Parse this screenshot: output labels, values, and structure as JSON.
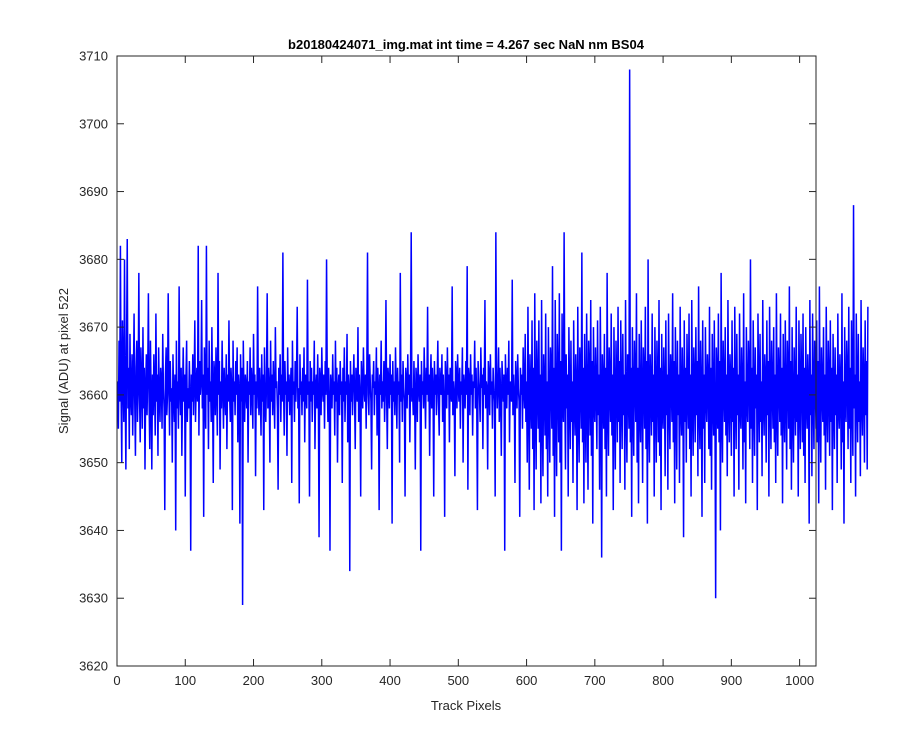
{
  "chart_data": {
    "type": "line",
    "title": "b20180424071_img.mat int time = 4.267 sec  NaN nm BS04",
    "xlabel": "Track Pixels",
    "ylabel": "Signal (ADU) at pixel 522",
    "xlim": [
      0,
      1024
    ],
    "ylim": [
      3620,
      3710
    ],
    "xticks": [
      0,
      100,
      200,
      300,
      400,
      500,
      600,
      700,
      800,
      900,
      1000
    ],
    "yticks": [
      3620,
      3630,
      3640,
      3650,
      3660,
      3670,
      3680,
      3690,
      3700,
      3710
    ],
    "grid": false,
    "series": [
      {
        "color": "#0000ff",
        "x_start": 1,
        "x_step": 1,
        "baseline": 3660,
        "typical_range": [
          3643,
          3677
        ],
        "min_point": [
          188,
          3629
        ],
        "max_point": [
          683,
          3708
        ],
        "values": [
          3662,
          3655,
          3668,
          3659,
          3682,
          3660,
          3650,
          3671,
          3663,
          3656,
          3680,
          3661,
          3649,
          3667,
          3683,
          3658,
          3664,
          3652,
          3669,
          3660,
          3657,
          3666,
          3654,
          3662,
          3672,
          3659,
          3651,
          3664,
          3668,
          3656,
          3661,
          3678,
          3660,
          3653,
          3667,
          3662,
          3655,
          3670,
          3658,
          3664,
          3649,
          3661,
          3666,
          3657,
          3663,
          3675,
          3659,
          3652,
          3668,
          3660,
          3649,
          3663,
          3657,
          3666,
          3661,
          3654,
          3672,
          3659,
          3663,
          3651,
          3667,
          3660,
          3656,
          3664,
          3662,
          3655,
          3669,
          3661,
          3658,
          3643,
          3663,
          3667,
          3657,
          3660,
          3675,
          3662,
          3654,
          3665,
          3659,
          3661,
          3650,
          3666,
          3660,
          3656,
          3663,
          3640,
          3668,
          3658,
          3662,
          3655,
          3676,
          3661,
          3657,
          3664,
          3651,
          3660,
          3667,
          3659,
          3663,
          3645,
          3662,
          3668,
          3656,
          3661,
          3658,
          3665,
          3660,
          3637,
          3663,
          3659,
          3666,
          3657,
          3662,
          3671,
          3656,
          3661,
          3664,
          3659,
          3682,
          3654,
          3665,
          3660,
          3662,
          3674,
          3658,
          3663,
          3642,
          3667,
          3661,
          3655,
          3682,
          3660,
          3664,
          3652,
          3668,
          3659,
          3662,
          3656,
          3670,
          3660,
          3647,
          3665,
          3663,
          3657,
          3667,
          3661,
          3654,
          3678,
          3660,
          3665,
          3649,
          3662,
          3658,
          3668,
          3661,
          3655,
          3664,
          3660,
          3657,
          3666,
          3652,
          3663,
          3659,
          3671,
          3660,
          3656,
          3664,
          3661,
          3643,
          3668,
          3659,
          3662,
          3657,
          3665,
          3660,
          3667,
          3653,
          3663,
          3661,
          3641,
          3666,
          3659,
          3664,
          3629,
          3668,
          3660,
          3656,
          3663,
          3661,
          3658,
          3665,
          3650,
          3662,
          3660,
          3667,
          3657,
          3664,
          3661,
          3655,
          3669,
          3660,
          3663,
          3648,
          3662,
          3658,
          3676,
          3661,
          3657,
          3664,
          3660,
          3654,
          3666,
          3659,
          3663,
          3643,
          3667,
          3660,
          3656,
          3662,
          3675,
          3658,
          3664,
          3661,
          3650,
          3668,
          3659,
          3663,
          3657,
          3665,
          3660,
          3655,
          3670,
          3661,
          3662,
          3658,
          3646,
          3664,
          3660,
          3666,
          3656,
          3663,
          3659,
          3681,
          3661,
          3654,
          3665,
          3660,
          3662,
          3651,
          3667,
          3659,
          3663,
          3657,
          3661,
          3664,
          3647,
          3668,
          3660,
          3662,
          3656,
          3665,
          3659,
          3663,
          3673,
          3658,
          3661,
          3644,
          3666,
          3660,
          3662,
          3657,
          3664,
          3659,
          3667,
          3653,
          3663,
          3661,
          3658,
          3677,
          3660,
          3662,
          3645,
          3665,
          3659,
          3664,
          3656,
          3662,
          3660,
          3668,
          3652,
          3661,
          3663,
          3658,
          3666,
          3660,
          3639,
          3664,
          3662,
          3657,
          3667,
          3661,
          3659,
          3663,
          3655,
          3665,
          3660,
          3680,
          3662,
          3656,
          3664,
          3659,
          3637,
          3663,
          3661,
          3658,
          3666,
          3660,
          3662,
          3654,
          3668,
          3659,
          3664,
          3650,
          3661,
          3663,
          3657,
          3665,
          3660,
          3662,
          3647,
          3664,
          3659,
          3667,
          3656,
          3662,
          3660,
          3669,
          3653,
          3663,
          3661,
          3634,
          3665,
          3659,
          3663,
          3657,
          3662,
          3666,
          3660,
          3652,
          3664,
          3661,
          3659,
          3670,
          3656,
          3663,
          3660,
          3645,
          3665,
          3662,
          3658,
          3667,
          3661,
          3659,
          3663,
          3655,
          3664,
          3681,
          3660,
          3657,
          3666,
          3662,
          3659,
          3649,
          3663,
          3661,
          3665,
          3657,
          3662,
          3660,
          3667,
          3654,
          3664,
          3661,
          3643,
          3663,
          3660,
          3668,
          3658,
          3662,
          3659,
          3665,
          3656,
          3661,
          3674,
          3660,
          3652,
          3664,
          3662,
          3658,
          3666,
          3660,
          3663,
          3641,
          3665,
          3659,
          3662,
          3657,
          3667,
          3661,
          3655,
          3664,
          3660,
          3662,
          3650,
          3678,
          3659,
          3663,
          3656,
          3665,
          3661,
          3659,
          3645,
          3664,
          3662,
          3658,
          3666,
          3660,
          3663,
          3653,
          3662,
          3684,
          3659,
          3661,
          3657,
          3665,
          3660,
          3649,
          3664,
          3662,
          3656,
          3666,
          3661,
          3659,
          3663,
          3637,
          3665,
          3660,
          3662,
          3658,
          3667,
          3661,
          3655,
          3664,
          3660,
          3673,
          3659,
          3663,
          3651,
          3662,
          3666,
          3658,
          3664,
          3661,
          3645,
          3665,
          3660,
          3663,
          3657,
          3662,
          3668,
          3659,
          3654,
          3664,
          3661,
          3660,
          3666,
          3656,
          3663,
          3659,
          3642,
          3665,
          3662,
          3658,
          3667,
          3660,
          3663,
          3653,
          3664,
          3661,
          3659,
          3676,
          3657,
          3662,
          3660,
          3648,
          3665,
          3663,
          3658,
          3666,
          3661,
          3659,
          3664,
          3655,
          3662,
          3660,
          3667,
          3650,
          3663,
          3661,
          3658,
          3665,
          3660,
          3679,
          3646,
          3664,
          3662,
          3657,
          3666,
          3660,
          3663,
          3654,
          3662,
          3661,
          3668,
          3658,
          3664,
          3659,
          3643,
          3665,
          3662,
          3660,
          3656,
          3667,
          3661,
          3663,
          3652,
          3664,
          3660,
          3674,
          3658,
          3662,
          3661,
          3649,
          3665,
          3663,
          3657,
          3666,
          3660,
          3662,
          3655,
          3664,
          3661,
          3659,
          3645,
          3684,
          3663,
          3658,
          3662,
          3667,
          3656,
          3664,
          3660,
          3651,
          3665,
          3662,
          3659,
          3663,
          3637,
          3666,
          3661,
          3658,
          3664,
          3660,
          3668,
          3653,
          3662,
          3661,
          3659,
          3677,
          3657,
          3663,
          3660,
          3647,
          3665,
          3662,
          3658,
          3666,
          3661,
          3659,
          3642,
          3664,
          3660,
          3663,
          3655,
          3667,
          3661,
          3658,
          3669,
          3656,
          3662,
          3650,
          3673,
          3659,
          3646,
          3666,
          3660,
          3655,
          3671,
          3652,
          3664,
          3643,
          3675,
          3658,
          3649,
          3668,
          3661,
          3655,
          3671,
          3653,
          3663,
          3644,
          3674,
          3657,
          3648,
          3666,
          3661,
          3654,
          3672,
          3652,
          3662,
          3645,
          3670,
          3659,
          3650,
          3667,
          3663,
          3655,
          3679,
          3651,
          3664,
          3642,
          3674,
          3658,
          3648,
          3669,
          3662,
          3653,
          3675,
          3650,
          3665,
          3637,
          3672,
          3659,
          3656,
          3684,
          3661,
          3649,
          3666,
          3658,
          3663,
          3645,
          3670,
          3660,
          3652,
          3668,
          3656,
          3662,
          3647,
          3671,
          3659,
          3654,
          3666,
          3661,
          3643,
          3673,
          3657,
          3650,
          3667,
          3662,
          3655,
          3681,
          3653,
          3664,
          3644,
          3669,
          3658,
          3650,
          3672,
          3660,
          3646,
          3668,
          3663,
          3654,
          3674,
          3651,
          3665,
          3641,
          3670,
          3659,
          3656,
          3667,
          3661,
          3652,
          3671,
          3657,
          3663,
          3646,
          3673,
          3660,
          3636,
          3666,
          3662,
          3655,
          3669,
          3652,
          3664,
          3645,
          3678,
          3658,
          3651,
          3667,
          3661,
          3656,
          3672,
          3654,
          3663,
          3643,
          3670,
          3659,
          3649,
          3668,
          3662,
          3653,
          3673,
          3656,
          3665,
          3647,
          3671,
          3660,
          3652,
          3669,
          3657,
          3663,
          3646,
          3674,
          3658,
          3650,
          3666,
          3661,
          3655,
          3708,
          3653,
          3664,
          3642,
          3670,
          3659,
          3651,
          3668,
          3662,
          3656,
          3675,
          3650,
          3664,
          3644,
          3669,
          3658,
          3653,
          3671,
          3660,
          3647,
          3667,
          3663,
          3655,
          3673,
          3652,
          3665,
          3641,
          3680,
          3657,
          3650,
          3666,
          3661,
          3654,
          3672,
          3656,
          3663,
          3645,
          3670,
          3660,
          3650,
          3668,
          3662,
          3653,
          3674,
          3651,
          3664,
          3643,
          3669,
          3658,
          3655,
          3667,
          3661,
          3648,
          3671,
          3657,
          3663,
          3646,
          3672,
          3659,
          3652,
          3666,
          3662,
          3656,
          3675,
          3653,
          3665,
          3644,
          3670,
          3660,
          3649,
          3668,
          3657,
          3663,
          3647,
          3673,
          3658,
          3654,
          3667,
          3661,
          3639,
          3671,
          3656,
          3664,
          3650,
          3669,
          3660,
          3655,
          3672,
          3652,
          3663,
          3645,
          3674,
          3659,
          3651,
          3667,
          3662,
          3653,
          3670,
          3657,
          3665,
          3648,
          3676,
          3658,
          3652,
          3668,
          3661,
          3642,
          3671,
          3655,
          3663,
          3647,
          3670,
          3660,
          3656,
          3666,
          3662,
          3652,
          3673,
          3651,
          3664,
          3646,
          3669,
          3659,
          3654,
          3671,
          3657,
          3630,
          3667,
          3663,
          3655,
          3672,
          3653,
          3665,
          3640,
          3678,
          3658,
          3650,
          3668,
          3661,
          3656,
          3670,
          3654,
          3663,
          3648,
          3674,
          3659,
          3653,
          3666,
          3662,
          3651,
          3671,
          3656,
          3664,
          3645,
          3673,
          3660,
          3652,
          3669,
          3657,
          3663,
          3646,
          3672,
          3658,
          3655,
          3667,
          3661,
          3649,
          3675,
          3653,
          3662,
          3644,
          3670,
          3659,
          3656,
          3668,
          3663,
          3652,
          3680,
          3655,
          3664,
          3647,
          3671,
          3660,
          3651,
          3667,
          3658,
          3663,
          3643,
          3672,
          3661,
          3653,
          3669,
          3656,
          3662,
          3648,
          3674,
          3659,
          3654,
          3666,
          3662,
          3650,
          3671,
          3657,
          3665,
          3645,
          3673,
          3660,
          3652,
          3668,
          3661,
          3655,
          3670,
          3653,
          3663,
          3647,
          3675,
          3658,
          3651,
          3667,
          3662,
          3656,
          3672,
          3654,
          3664,
          3644,
          3669,
          3659,
          3653,
          3671,
          3660,
          3649,
          3668,
          3663,
          3655,
          3676,
          3652,
          3665,
          3646,
          3670,
          3658,
          3650,
          3667,
          3661,
          3654,
          3673,
          3656,
          3663,
          3645,
          3671,
          3660,
          3652,
          3669,
          3662,
          3653,
          3672,
          3651,
          3664,
          3647,
          3670,
          3659,
          3655,
          3666,
          3661,
          3641,
          3674,
          3657,
          3663,
          3648,
          3672,
          3660,
          3652,
          3668,
          3662,
          3655,
          3671,
          3653,
          3665,
          3644,
          3676,
          3658,
          3650,
          3667,
          3661,
          3656,
          3670,
          3654,
          3663,
          3646,
          3673,
          3659,
          3653,
          3668,
          3662,
          3651,
          3671,
          3656,
          3664,
          3643,
          3669,
          3660,
          3652,
          3667,
          3657,
          3663,
          3647,
          3672,
          3658,
          3655,
          3666,
          3661,
          3649,
          3675,
          3653,
          3662,
          3641,
          3670,
          3659,
          3656,
          3668,
          3663,
          3652,
          3673,
          3655,
          3664,
          3647,
          3671,
          3660,
          3651,
          3688,
          3658,
          3663,
          3645,
          3672,
          3661,
          3653,
          3669,
          3656,
          3662,
          3648,
          3674,
          3659,
          3654,
          3667,
          3662,
          3650,
          3671,
          3657,
          3665,
          3649,
          3673
        ]
      }
    ]
  }
}
